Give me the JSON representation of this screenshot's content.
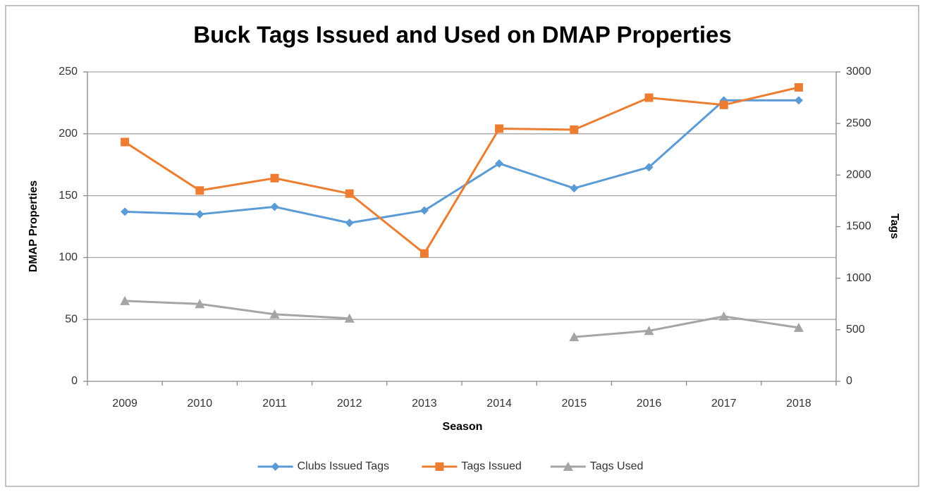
{
  "chart_data": {
    "type": "line",
    "title": "Buck Tags Issued and Used on DMAP Properties",
    "xlabel": "Season",
    "ylabel": "DMAP Properties",
    "y2label": "Tags",
    "categories": [
      "2009",
      "2010",
      "2011",
      "2012",
      "2013",
      "2014",
      "2015",
      "2016",
      "2017",
      "2018"
    ],
    "series": [
      {
        "name": "Clubs Issued Tags",
        "color": "#5b9bd5",
        "marker": "diamond",
        "axis": "y",
        "values": [
          137,
          135,
          141,
          128,
          138,
          176,
          156,
          173,
          227,
          227
        ]
      },
      {
        "name": "Tags Issued",
        "color": "#ed7d31",
        "marker": "square",
        "axis": "y2",
        "values": [
          2320,
          1850,
          1970,
          1820,
          1240,
          2450,
          2440,
          2750,
          2680,
          2850
        ]
      },
      {
        "name": "Tags Used",
        "color": "#a5a5a5",
        "marker": "triangle",
        "axis": "y2",
        "values": [
          780,
          750,
          650,
          610,
          null,
          null,
          430,
          490,
          630,
          520
        ]
      }
    ],
    "ylim": [
      0,
      250
    ],
    "yticks": [
      0,
      50,
      100,
      150,
      200,
      250
    ],
    "y2lim": [
      0,
      3000
    ],
    "y2ticks": [
      0,
      500,
      1000,
      1500,
      2000,
      2500,
      3000
    ],
    "grid": true,
    "legend": "bottom"
  }
}
